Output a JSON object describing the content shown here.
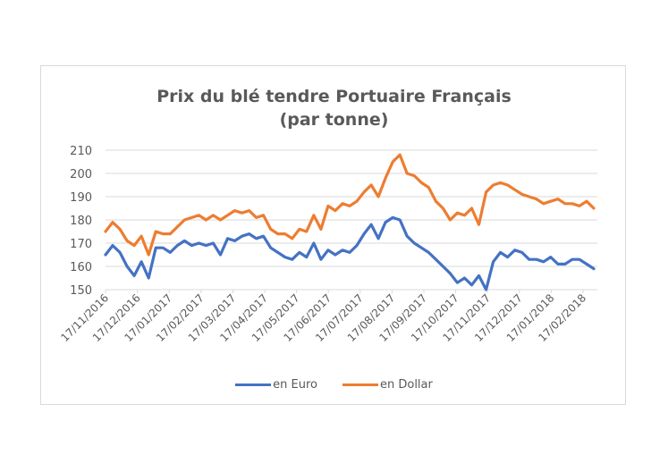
{
  "chart_data": {
    "type": "line",
    "title": "Prix du blé tendre  Portuaire Français (par tonne)",
    "title_lines": [
      "Prix du blé tendre  Portuaire Français",
      "(par tonne)"
    ],
    "xlabel": "",
    "ylabel": "",
    "ylim": [
      150,
      210
    ],
    "yticks": [
      150,
      160,
      170,
      180,
      190,
      200,
      210
    ],
    "grid": true,
    "legend_position": "bottom",
    "categories": [
      "17/11/2016",
      "17/12/2016",
      "17/01/2017",
      "17/02/2017",
      "17/03/2017",
      "17/04/2017",
      "17/05/2017",
      "17/06/2017",
      "17/07/2017",
      "17/08/2017",
      "17/09/2017",
      "17/10/2017",
      "17/11/2017",
      "17/12/2017",
      "17/01/2018",
      "17/02/2018"
    ],
    "x": [
      "17/11/2016",
      "24/11/2016",
      "01/12/2016",
      "08/12/2016",
      "15/12/2016",
      "22/12/2016",
      "29/12/2016",
      "05/01/2017",
      "12/01/2017",
      "19/01/2017",
      "26/01/2017",
      "02/02/2017",
      "09/02/2017",
      "16/02/2017",
      "23/02/2017",
      "02/03/2017",
      "09/03/2017",
      "16/03/2017",
      "23/03/2017",
      "30/03/2017",
      "06/04/2017",
      "13/04/2017",
      "20/04/2017",
      "27/04/2017",
      "04/05/2017",
      "11/05/2017",
      "18/05/2017",
      "25/05/2017",
      "01/06/2017",
      "08/06/2017",
      "15/06/2017",
      "22/06/2017",
      "29/06/2017",
      "06/07/2017",
      "13/07/2017",
      "20/07/2017",
      "27/07/2017",
      "03/08/2017",
      "10/08/2017",
      "17/08/2017",
      "24/08/2017",
      "31/08/2017",
      "07/09/2017",
      "14/09/2017",
      "21/09/2017",
      "28/09/2017",
      "05/10/2017",
      "12/10/2017",
      "19/10/2017",
      "26/10/2017",
      "02/11/2017",
      "09/11/2017",
      "16/11/2017",
      "23/11/2017",
      "30/11/2017",
      "07/12/2017",
      "14/12/2017",
      "21/12/2017",
      "28/12/2017",
      "04/01/2018",
      "11/01/2018",
      "18/01/2018",
      "25/01/2018",
      "01/02/2018",
      "08/02/2018",
      "15/02/2018",
      "22/02/2018",
      "01/03/2018",
      "08/03/2018"
    ],
    "series": [
      {
        "name": "en Euro",
        "color": "#4472C4",
        "values": [
          165,
          169,
          166,
          160,
          156,
          162,
          155,
          168,
          168,
          166,
          169,
          171,
          169,
          170,
          169,
          170,
          165,
          172,
          171,
          173,
          174,
          172,
          173,
          168,
          166,
          164,
          163,
          166,
          164,
          170,
          163,
          167,
          165,
          167,
          166,
          169,
          174,
          178,
          172,
          179,
          181,
          180,
          173,
          170,
          168,
          166,
          163,
          160,
          157,
          153,
          155,
          152,
          156,
          150,
          162,
          166,
          164,
          167,
          166,
          163,
          163,
          162,
          164,
          161,
          161,
          163,
          163,
          161,
          159
        ]
      },
      {
        "name": "en Dollar",
        "color": "#ED7D31",
        "values": [
          175,
          179,
          176,
          171,
          169,
          173,
          165,
          175,
          174,
          174,
          177,
          180,
          181,
          182,
          180,
          182,
          180,
          182,
          184,
          183,
          184,
          181,
          182,
          176,
          174,
          174,
          172,
          176,
          175,
          182,
          176,
          186,
          184,
          187,
          186,
          188,
          192,
          195,
          190,
          198,
          205,
          208,
          200,
          199,
          196,
          194,
          188,
          185,
          180,
          183,
          182,
          185,
          178,
          192,
          195,
          196,
          195,
          193,
          191,
          190,
          189,
          187,
          188,
          189,
          187,
          187,
          186,
          188,
          185
        ]
      }
    ]
  },
  "legend": {
    "items": [
      {
        "label": "en Euro",
        "color": "#4472C4"
      },
      {
        "label": "en Dollar",
        "color": "#ED7D31"
      }
    ]
  },
  "axis": {
    "y_labels": [
      "210",
      "200",
      "190",
      "180",
      "170",
      "160",
      "150"
    ],
    "x_labels": [
      "17/11/2016",
      "17/12/2016",
      "17/01/2017",
      "17/02/2017",
      "17/03/2017",
      "17/04/2017",
      "17/05/2017",
      "17/06/2017",
      "17/07/2017",
      "17/08/2017",
      "17/09/2017",
      "17/10/2017",
      "17/11/2017",
      "17/12/2017",
      "17/01/2018",
      "17/02/2018"
    ]
  }
}
